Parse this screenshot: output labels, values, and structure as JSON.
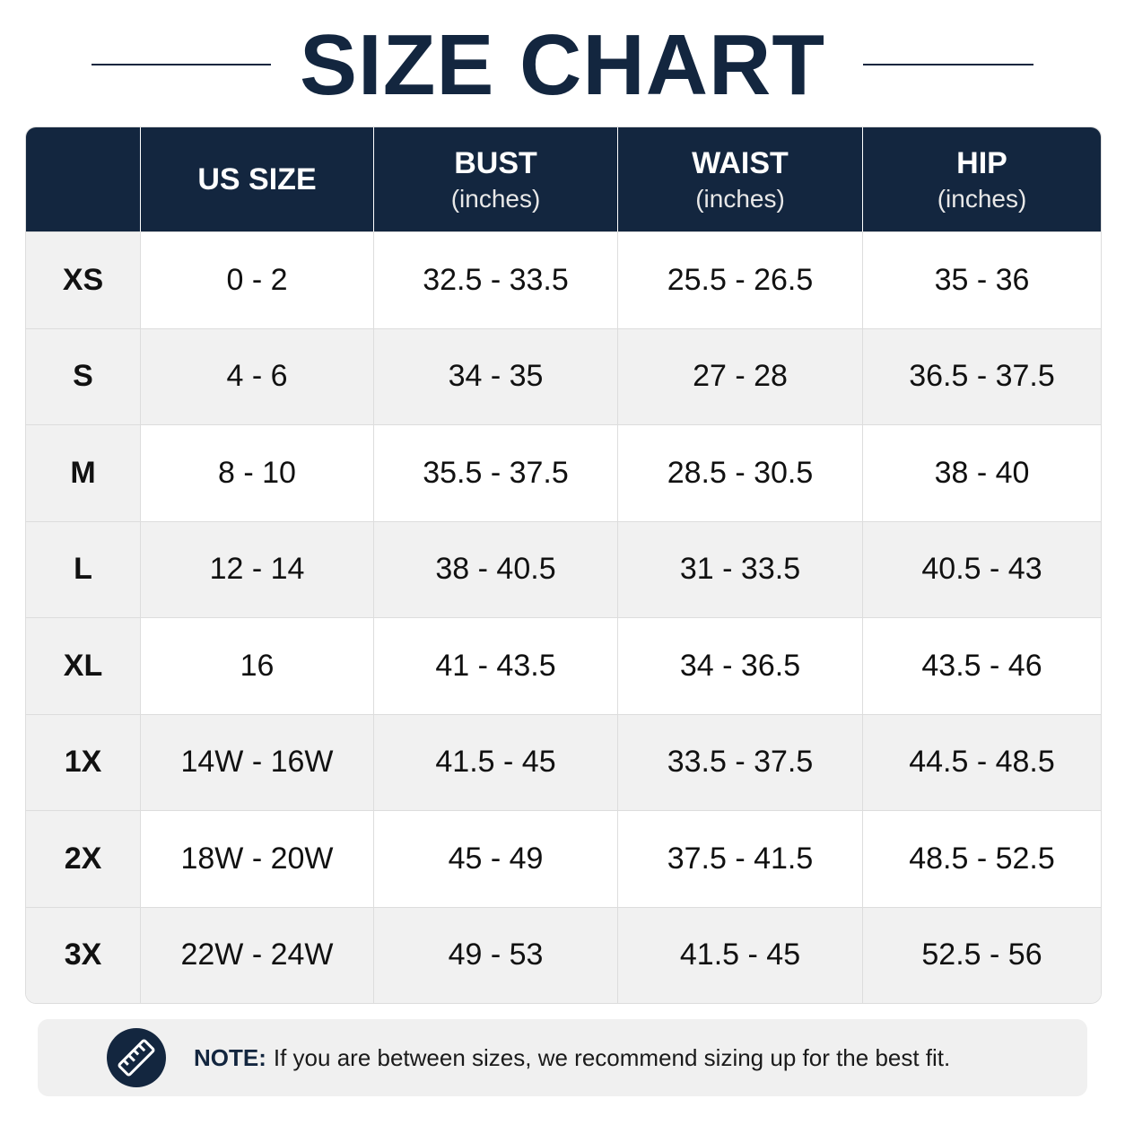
{
  "title": "SIZE CHART",
  "table": {
    "header": [
      {
        "label": "US SIZE"
      },
      {
        "label": "BUST",
        "unit": "(inches)"
      },
      {
        "label": "WAIST",
        "unit": "(inches)"
      },
      {
        "label": "HIP",
        "unit": "(inches)"
      }
    ],
    "rows": [
      {
        "size": "XS",
        "cells": [
          "0 - 2",
          "32.5 - 33.5",
          "25.5 - 26.5",
          "35 - 36"
        ]
      },
      {
        "size": "S",
        "cells": [
          "4 - 6",
          "34 - 35",
          "27 - 28",
          "36.5 - 37.5"
        ]
      },
      {
        "size": "M",
        "cells": [
          "8 - 10",
          "35.5 - 37.5",
          "28.5 - 30.5",
          "38 - 40"
        ]
      },
      {
        "size": "L",
        "cells": [
          "12 - 14",
          "38 - 40.5",
          "31 - 33.5",
          "40.5 - 43"
        ]
      },
      {
        "size": "XL",
        "cells": [
          "16",
          "41 - 43.5",
          "34 - 36.5",
          "43.5 - 46"
        ]
      },
      {
        "size": "1X",
        "cells": [
          "14W - 16W",
          "41.5 - 45",
          "33.5 - 37.5",
          "44.5 - 48.5"
        ]
      },
      {
        "size": "2X",
        "cells": [
          "18W - 20W",
          "45 - 49",
          "37.5 - 41.5",
          "48.5 - 52.5"
        ]
      },
      {
        "size": "3X",
        "cells": [
          "22W - 24W",
          "49 - 53",
          "41.5 - 45",
          "52.5 - 56"
        ]
      }
    ]
  },
  "note": {
    "label": "NOTE:",
    "text": "If you are between sizes, we recommend sizing up for the best fit."
  }
}
